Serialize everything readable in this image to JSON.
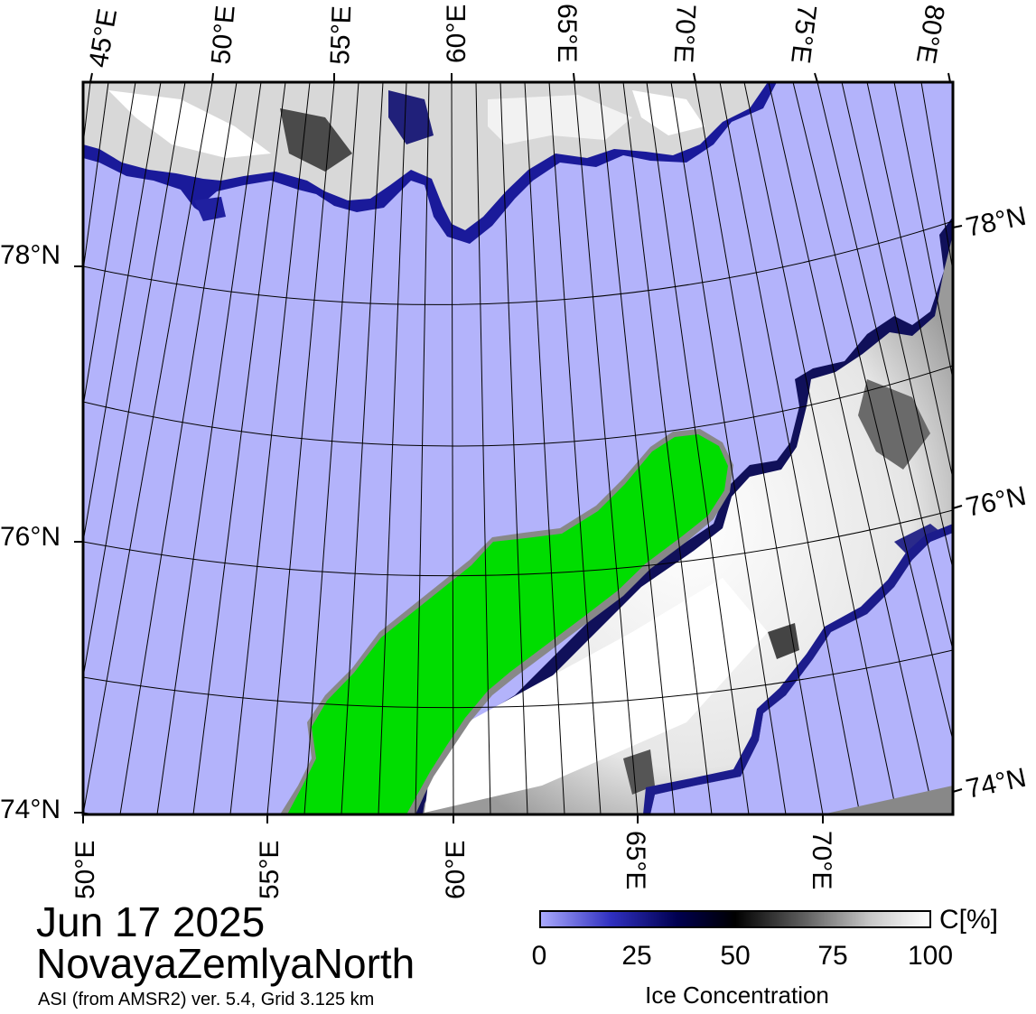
{
  "map": {
    "date": "Jun 17 2025",
    "region": "NovayaZemlyaNorth",
    "source": "ASI (from AMSR2) ver. 5.4,  Grid 3.125 km",
    "top_lon_labels": [
      "45°E",
      "50°E",
      "55°E",
      "60°E",
      "65°E",
      "70°E",
      "75°E",
      "80°E"
    ],
    "bottom_lon_labels": [
      "50°E",
      "55°E",
      "60°E",
      "65°E",
      "70°E"
    ],
    "left_lat_labels": [
      "78°N",
      "76°N",
      "74°N"
    ],
    "right_lat_labels": [
      "78°N",
      "76°N",
      "74°N"
    ],
    "colors": {
      "open_water": "#b3b3fb",
      "land": "#00dd00",
      "coast_gray": "#888888",
      "ice_high": "#f4f4f4",
      "ice_edge": "#08085a",
      "grid": "#000000"
    }
  },
  "colorbar": {
    "unit": "C[%]",
    "title": "Ice Concentration",
    "ticks": [
      "0",
      "25",
      "50",
      "75",
      "100"
    ],
    "colors": [
      "#a9a9fd",
      "#000050",
      "#000000",
      "#ffffff"
    ]
  }
}
